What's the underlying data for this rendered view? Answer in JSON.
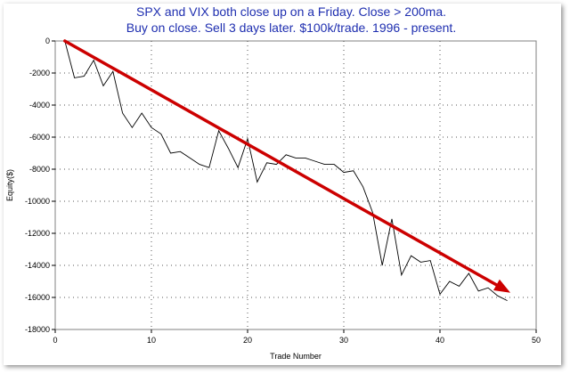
{
  "chart_data": {
    "type": "line",
    "title_line1": "SPX and VIX both close up on a Friday.  Close > 200ma.",
    "title_line2": "Buy on close.  Sell 3 days later.  $100k/trade.  1996 - present.",
    "xlabel": "Trade Number",
    "ylabel": "Equity($)",
    "xlim": [
      0,
      50
    ],
    "ylim": [
      -18000,
      0
    ],
    "xticks": [
      0,
      10,
      20,
      30,
      40,
      50
    ],
    "yticks": [
      0,
      -2000,
      -4000,
      -6000,
      -8000,
      -10000,
      -12000,
      -14000,
      -16000,
      -18000
    ],
    "ytick_labels": [
      "0",
      "-2000",
      "-4000",
      "-6000",
      "-8000",
      "-10000",
      "-12000",
      "-14000",
      "-16000",
      "-18000"
    ],
    "grid": true,
    "series": [
      {
        "color": "#000000",
        "x": [
          1,
          2,
          3,
          4,
          5,
          6,
          7,
          8,
          9,
          10,
          11,
          12,
          13,
          14,
          15,
          16,
          17,
          18,
          19,
          20,
          21,
          22,
          23,
          24,
          25,
          26,
          27,
          28,
          29,
          30,
          31,
          32,
          33,
          34,
          35,
          36,
          37,
          38,
          39,
          40,
          41,
          42,
          43,
          44,
          45,
          46,
          47
        ],
        "values": [
          0,
          -2300,
          -2200,
          -1200,
          -2800,
          -1900,
          -4500,
          -5400,
          -4500,
          -5400,
          -5800,
          -7000,
          -6900,
          -7300,
          -7700,
          -7900,
          -5600,
          -6700,
          -7900,
          -6100,
          -8800,
          -7600,
          -7700,
          -7100,
          -7300,
          -7300,
          -7500,
          -7700,
          -7700,
          -8200,
          -8100,
          -9100,
          -10700,
          -14000,
          -11100,
          -14600,
          -13400,
          -13800,
          -13700,
          -15800,
          -15000,
          -15300,
          -14500,
          -15600,
          -15400,
          -15900,
          -16200
        ]
      }
    ],
    "trend_arrow": {
      "x_start": 1,
      "y_start": 0,
      "x_end": 47,
      "y_end": -15600,
      "color": "#cc0000"
    }
  }
}
